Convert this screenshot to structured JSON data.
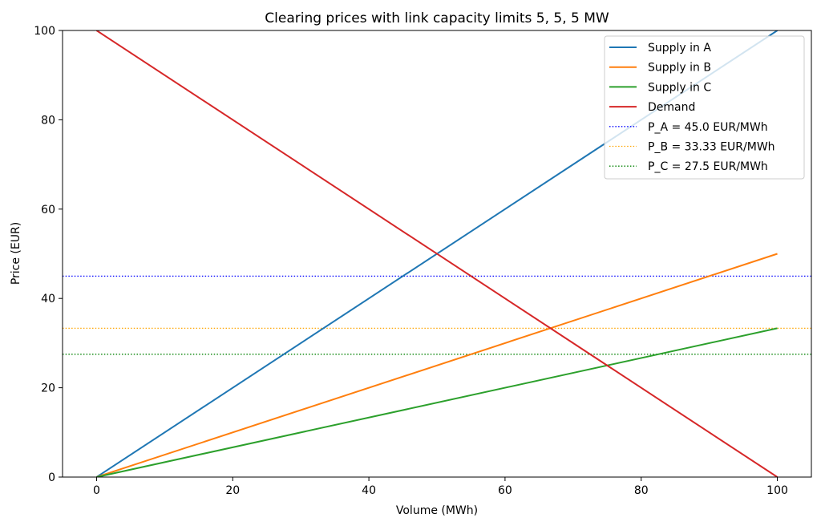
{
  "chart_data": {
    "type": "line",
    "title": "Clearing prices with link capacity limits 5, 5, 5 MW",
    "xlabel": "Volume (MWh)",
    "ylabel": "Price (EUR)",
    "xlim": [
      -5,
      105
    ],
    "ylim": [
      0,
      100
    ],
    "xticks": [
      0,
      20,
      40,
      60,
      80,
      100
    ],
    "yticks": [
      0,
      20,
      40,
      60,
      80,
      100
    ],
    "grid": false,
    "legend_placement": "top-right",
    "series": [
      {
        "name": "Supply in A",
        "x": [
          0,
          100
        ],
        "y": [
          0,
          100
        ],
        "color": "#1f77b4",
        "style": "solid"
      },
      {
        "name": "Supply in B",
        "x": [
          0,
          100
        ],
        "y": [
          0,
          50
        ],
        "color": "#ff7f0e",
        "style": "solid"
      },
      {
        "name": "Supply in C",
        "x": [
          0,
          100
        ],
        "y": [
          0,
          33.33
        ],
        "color": "#2ca02c",
        "style": "solid"
      },
      {
        "name": "Demand",
        "x": [
          0,
          100
        ],
        "y": [
          100,
          0
        ],
        "color": "#d62728",
        "style": "solid"
      }
    ],
    "hlines": [
      {
        "name": "P_A = 45.0 EUR/MWh",
        "y": 45.0,
        "color": "#0000ff",
        "style": "dotted"
      },
      {
        "name": "P_B = 33.33 EUR/MWh",
        "y": 33.33,
        "color": "#ffa500",
        "style": "dotted"
      },
      {
        "name": "P_C = 27.5 EUR/MWh",
        "y": 27.5,
        "color": "#008000",
        "style": "dotted"
      }
    ]
  }
}
